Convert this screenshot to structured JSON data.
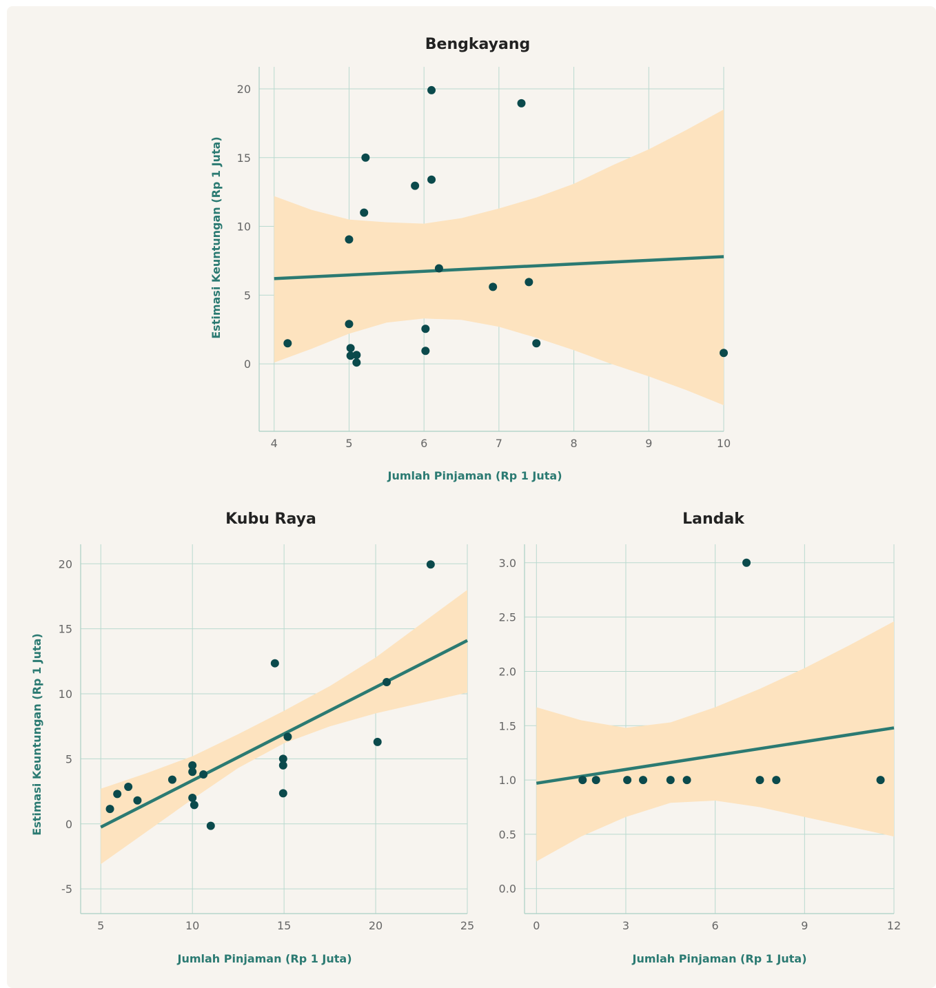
{
  "colors": {
    "background": "#f7f4ef",
    "band": "#fde3bf",
    "fit": "#2b7a72",
    "point": "#0b4a4c",
    "grid": "#b9d9cf",
    "label": "#2b7a72"
  },
  "chart_data": [
    {
      "type": "scatter",
      "title": "Bengkayang",
      "xlabel": "Jumlah Pinjaman (Rp 1 Juta)",
      "ylabel": "Estimasi Keuntungan (Rp 1 Juta)",
      "xlim": [
        3.8,
        10
      ],
      "ylim": [
        -4.9,
        21.6
      ],
      "xticks": [
        4,
        5,
        6,
        7,
        8,
        9,
        10
      ],
      "yticks": [
        0,
        5,
        10,
        15,
        20
      ],
      "grid": true,
      "points": [
        [
          4.18,
          1.5
        ],
        [
          5.0,
          2.9
        ],
        [
          5.0,
          9.05
        ],
        [
          5.02,
          1.15
        ],
        [
          5.02,
          0.6
        ],
        [
          5.1,
          0.65
        ],
        [
          5.1,
          0.1
        ],
        [
          5.2,
          11.0
        ],
        [
          5.22,
          15.0
        ],
        [
          5.88,
          12.95
        ],
        [
          6.02,
          2.55
        ],
        [
          6.02,
          0.95
        ],
        [
          6.1,
          19.9
        ],
        [
          6.1,
          13.4
        ],
        [
          6.2,
          6.95
        ],
        [
          6.92,
          5.6
        ],
        [
          7.3,
          18.95
        ],
        [
          7.4,
          5.95
        ],
        [
          7.5,
          1.5
        ],
        [
          10.0,
          0.8
        ]
      ],
      "fit": {
        "x": [
          4.0,
          10.0
        ],
        "y": [
          6.2,
          7.8
        ]
      },
      "ci_band": {
        "x": [
          4.0,
          4.5,
          5.0,
          5.5,
          6.0,
          6.5,
          7.0,
          7.5,
          8.0,
          8.5,
          9.0,
          9.5,
          10.0
        ],
        "lower": [
          0.1,
          1.1,
          2.2,
          3.0,
          3.3,
          3.2,
          2.7,
          1.9,
          1.0,
          0.0,
          -0.9,
          -1.9,
          -3.0
        ],
        "upper": [
          12.2,
          11.2,
          10.5,
          10.3,
          10.2,
          10.6,
          11.3,
          12.1,
          13.1,
          14.4,
          15.6,
          17.0,
          18.5
        ]
      }
    },
    {
      "type": "scatter",
      "title": "Kubu Raya",
      "xlabel": "Jumlah Pinjaman (Rp 1 Juta)",
      "ylabel": "Estimasi Keuntungan (Rp 1 Juta)",
      "xlim": [
        3.9,
        25
      ],
      "ylim": [
        -6.9,
        21.5
      ],
      "xticks": [
        5,
        10,
        15,
        20,
        25
      ],
      "yticks": [
        -5,
        0,
        5,
        10,
        15,
        20
      ],
      "grid": true,
      "points": [
        [
          5.5,
          1.15
        ],
        [
          5.9,
          2.3
        ],
        [
          6.5,
          2.85
        ],
        [
          7.0,
          1.8
        ],
        [
          8.9,
          3.4
        ],
        [
          10.0,
          4.5
        ],
        [
          10.0,
          4.0
        ],
        [
          10.0,
          2.0
        ],
        [
          10.1,
          1.45
        ],
        [
          10.6,
          3.8
        ],
        [
          11.0,
          -0.15
        ],
        [
          14.5,
          12.35
        ],
        [
          14.95,
          5.0
        ],
        [
          14.95,
          4.5
        ],
        [
          14.95,
          2.35
        ],
        [
          15.2,
          6.7
        ],
        [
          20.1,
          6.3
        ],
        [
          20.6,
          10.9
        ],
        [
          23.0,
          19.95
        ]
      ],
      "fit": {
        "x": [
          5.0,
          25.0
        ],
        "y": [
          -0.25,
          14.1
        ]
      },
      "ci_band": {
        "x": [
          5.0,
          7.5,
          10.0,
          12.5,
          15.0,
          17.5,
          20.0,
          22.5,
          25.0
        ],
        "lower": [
          -3.1,
          -0.6,
          1.9,
          4.3,
          6.2,
          7.5,
          8.5,
          9.3,
          10.1
        ],
        "upper": [
          2.7,
          3.9,
          5.2,
          6.9,
          8.7,
          10.6,
          12.8,
          15.4,
          18.0
        ]
      }
    },
    {
      "type": "scatter",
      "title": "Landak",
      "xlabel": "Jumlah Pinjaman (Rp 1 Juta)",
      "ylabel": "",
      "xlim": [
        -0.4,
        12
      ],
      "ylim": [
        -0.23,
        3.17
      ],
      "xticks": [
        0,
        3,
        6,
        9,
        12
      ],
      "ytick_labels": [
        "0.0",
        "0.5",
        "1.0",
        "1.5",
        "2.0",
        "2.5",
        "3.0"
      ],
      "yticks": [
        0.0,
        0.5,
        1.0,
        1.5,
        2.0,
        2.5,
        3.0
      ],
      "grid": true,
      "points": [
        [
          1.55,
          1.0
        ],
        [
          2.0,
          1.0
        ],
        [
          3.05,
          1.0
        ],
        [
          3.58,
          1.0
        ],
        [
          4.5,
          1.0
        ],
        [
          5.05,
          1.0
        ],
        [
          7.05,
          3.0
        ],
        [
          7.5,
          1.0
        ],
        [
          8.05,
          1.0
        ],
        [
          11.55,
          1.0
        ]
      ],
      "fit": {
        "x": [
          0.0,
          12.0
        ],
        "y": [
          0.97,
          1.48
        ]
      },
      "ci_band": {
        "x": [
          0.0,
          1.5,
          3.0,
          4.5,
          6.0,
          7.5,
          9.0,
          10.5,
          12.0
        ],
        "lower": [
          0.25,
          0.48,
          0.66,
          0.79,
          0.81,
          0.75,
          0.66,
          0.57,
          0.48
        ],
        "upper": [
          1.67,
          1.55,
          1.48,
          1.53,
          1.67,
          1.84,
          2.03,
          2.24,
          2.46
        ]
      }
    }
  ]
}
